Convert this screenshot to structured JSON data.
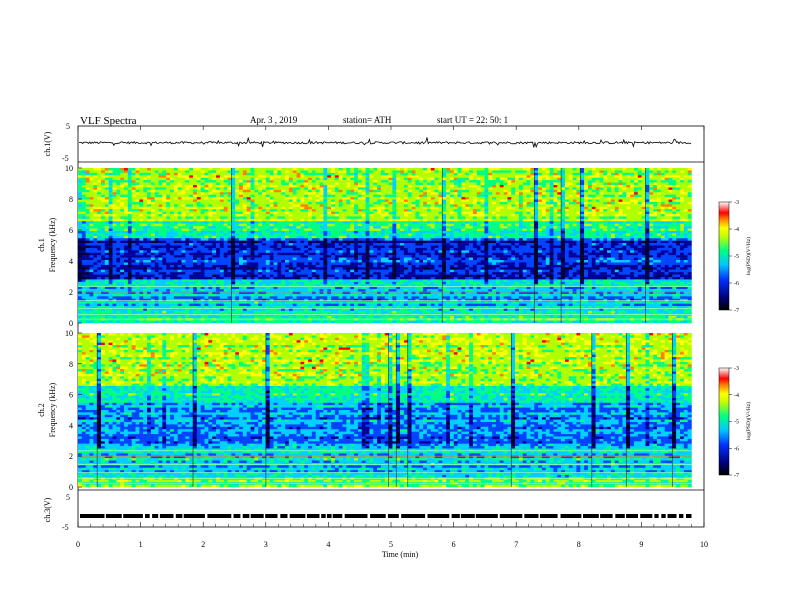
{
  "header": {
    "title": "VLF  Spectra",
    "date": "Apr. 3  , 2019",
    "station": "station= ATH",
    "start": "start  UT  =    22: 50: 1"
  },
  "chart_data": [
    {
      "type": "line",
      "id": "ch1-waveform",
      "ylabel": "ch.1(V)",
      "yticks": [
        "5",
        "-5"
      ],
      "ylim": [
        -5,
        5
      ],
      "xlim": [
        0,
        10
      ],
      "description_series": [
        {
          "name": "",
          "values_note": "",
          "x_end": 9.8
        }
      ]
    },
    {
      "type": "heatmap",
      "id": "ch1-spectrogram",
      "ylabel_top": "ch.1",
      "ylabel": "Frequency  (kHz)",
      "yticks": [
        "10",
        "8",
        "6",
        "4",
        "2",
        "0"
      ],
      "ylim": [
        0,
        10
      ],
      "xlim": [
        0,
        9.8
      ],
      "colorbar": {
        "label": "log(PSD)(V²/Hz)",
        "ticks": [
          "-3",
          "-4",
          "-5",
          "-6",
          "-7"
        ],
        "range": [
          -7,
          -3
        ]
      }
    },
    {
      "type": "heatmap",
      "id": "ch2-spectrogram",
      "ylabel_top": "ch.2",
      "ylabel": "Frequency  (kHz)",
      "yticks": [
        "10",
        "8",
        "6",
        "4",
        "2",
        "0"
      ],
      "ylim": [
        0,
        10
      ],
      "xlim": [
        0,
        9.8
      ],
      "colorbar": {
        "label": "log(PSD)(V²/Hz)",
        "ticks": [
          "-3",
          "-4",
          "-5",
          "-6",
          "-7"
        ],
        "range": [
          -7,
          -3
        ]
      }
    },
    {
      "type": "line",
      "id": "ch3-signal",
      "ylabel": "ch.3(V)",
      "yticks": [
        "5",
        "-5"
      ],
      "ylim": [
        -5,
        5
      ],
      "xlim": [
        0,
        10
      ],
      "xlabel": "Time  (min)",
      "xticks": [
        "0",
        "1",
        "2",
        "3",
        "4",
        "5",
        "6",
        "7",
        "8",
        "9",
        "10"
      ],
      "level_value": -2
    }
  ],
  "colors": {
    "spectrum": [
      "#000033",
      "#000099",
      "#0044ff",
      "#00d0ff",
      "#00ff80",
      "#b0ff00",
      "#ffff00",
      "#ff8000",
      "#ff0000",
      "#ffffff"
    ]
  }
}
